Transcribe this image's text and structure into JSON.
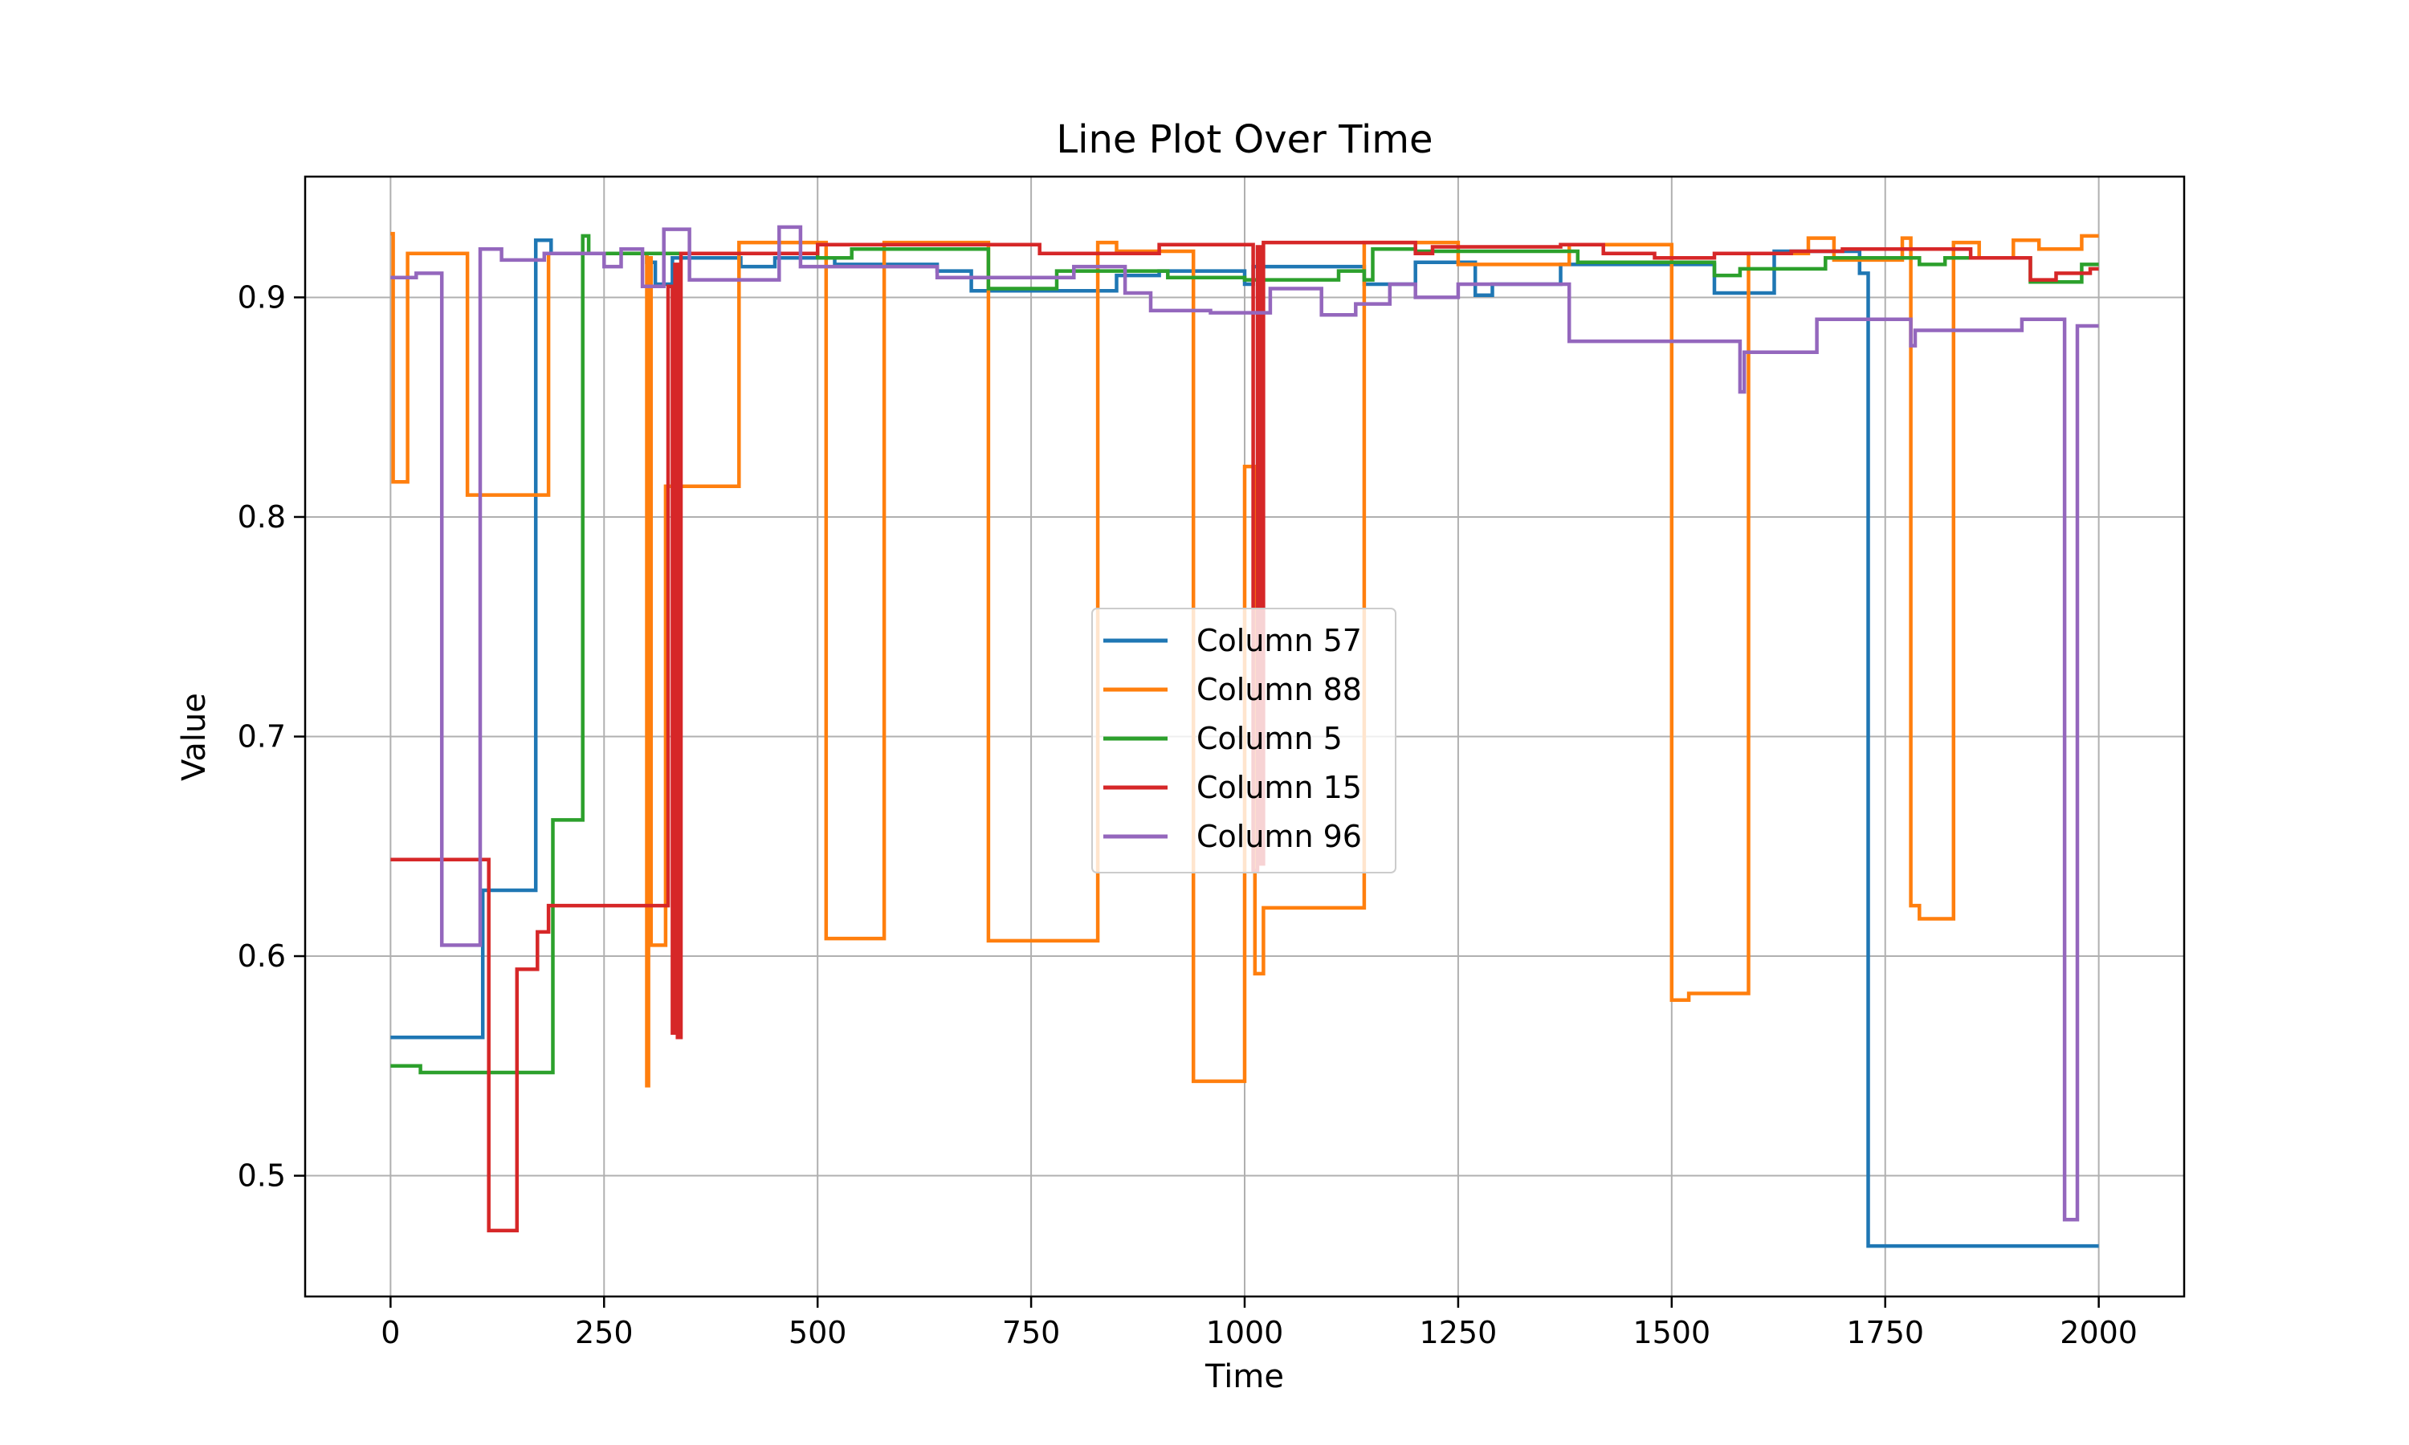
{
  "chart_data": {
    "type": "line",
    "title": "Line Plot Over Time",
    "xlabel": "Time",
    "ylabel": "Value",
    "xlim": [
      -100,
      2100
    ],
    "ylim": [
      0.445,
      0.955
    ],
    "xticks": [
      0,
      250,
      500,
      750,
      1000,
      1250,
      1500,
      1750,
      2000
    ],
    "yticks": [
      0.5,
      0.6,
      0.7,
      0.8,
      0.9
    ],
    "grid": true,
    "legend_position": "center",
    "series": [
      {
        "name": "Column 57",
        "color": "#1f77b4",
        "points": [
          [
            0,
            0.563
          ],
          [
            108,
            0.563
          ],
          [
            108,
            0.63
          ],
          [
            170,
            0.63
          ],
          [
            170,
            0.926
          ],
          [
            188,
            0.926
          ],
          [
            188,
            0.92
          ],
          [
            300,
            0.92
          ],
          [
            300,
            0.916
          ],
          [
            310,
            0.916
          ],
          [
            310,
            0.906
          ],
          [
            330,
            0.906
          ],
          [
            330,
            0.918
          ],
          [
            410,
            0.918
          ],
          [
            410,
            0.914
          ],
          [
            450,
            0.914
          ],
          [
            450,
            0.918
          ],
          [
            520,
            0.918
          ],
          [
            520,
            0.915
          ],
          [
            640,
            0.915
          ],
          [
            640,
            0.912
          ],
          [
            680,
            0.912
          ],
          [
            680,
            0.903
          ],
          [
            850,
            0.903
          ],
          [
            850,
            0.91
          ],
          [
            900,
            0.91
          ],
          [
            900,
            0.912
          ],
          [
            1000,
            0.912
          ],
          [
            1000,
            0.906
          ],
          [
            1010,
            0.906
          ],
          [
            1010,
            0.914
          ],
          [
            1140,
            0.914
          ],
          [
            1140,
            0.906
          ],
          [
            1200,
            0.906
          ],
          [
            1200,
            0.916
          ],
          [
            1270,
            0.916
          ],
          [
            1270,
            0.901
          ],
          [
            1290,
            0.901
          ],
          [
            1290,
            0.906
          ],
          [
            1370,
            0.906
          ],
          [
            1370,
            0.915
          ],
          [
            1550,
            0.915
          ],
          [
            1550,
            0.902
          ],
          [
            1620,
            0.902
          ],
          [
            1620,
            0.921
          ],
          [
            1720,
            0.921
          ],
          [
            1720,
            0.911
          ],
          [
            1730,
            0.911
          ],
          [
            1730,
            0.468
          ],
          [
            2000,
            0.468
          ]
        ]
      },
      {
        "name": "Column 88",
        "color": "#ff7f0e",
        "points": [
          [
            0,
            0.929
          ],
          [
            3,
            0.929
          ],
          [
            3,
            0.816
          ],
          [
            20,
            0.816
          ],
          [
            20,
            0.92
          ],
          [
            90,
            0.92
          ],
          [
            90,
            0.81
          ],
          [
            185,
            0.81
          ],
          [
            185,
            0.92
          ],
          [
            300,
            0.92
          ],
          [
            300,
            0.541
          ],
          [
            302,
            0.541
          ],
          [
            302,
            0.918
          ],
          [
            305,
            0.918
          ],
          [
            305,
            0.605
          ],
          [
            322,
            0.605
          ],
          [
            322,
            0.814
          ],
          [
            408,
            0.814
          ],
          [
            408,
            0.925
          ],
          [
            510,
            0.925
          ],
          [
            510,
            0.608
          ],
          [
            578,
            0.608
          ],
          [
            578,
            0.925
          ],
          [
            700,
            0.925
          ],
          [
            700,
            0.607
          ],
          [
            828,
            0.607
          ],
          [
            828,
            0.925
          ],
          [
            850,
            0.925
          ],
          [
            850,
            0.921
          ],
          [
            940,
            0.921
          ],
          [
            940,
            0.543
          ],
          [
            1000,
            0.543
          ],
          [
            1000,
            0.823
          ],
          [
            1012,
            0.823
          ],
          [
            1012,
            0.592
          ],
          [
            1022,
            0.592
          ],
          [
            1022,
            0.622
          ],
          [
            1140,
            0.622
          ],
          [
            1140,
            0.925
          ],
          [
            1250,
            0.925
          ],
          [
            1250,
            0.915
          ],
          [
            1380,
            0.915
          ],
          [
            1380,
            0.924
          ],
          [
            1500,
            0.924
          ],
          [
            1500,
            0.58
          ],
          [
            1520,
            0.58
          ],
          [
            1520,
            0.583
          ],
          [
            1590,
            0.583
          ],
          [
            1590,
            0.92
          ],
          [
            1660,
            0.92
          ],
          [
            1660,
            0.927
          ],
          [
            1690,
            0.927
          ],
          [
            1690,
            0.917
          ],
          [
            1770,
            0.917
          ],
          [
            1770,
            0.927
          ],
          [
            1780,
            0.927
          ],
          [
            1780,
            0.623
          ],
          [
            1790,
            0.623
          ],
          [
            1790,
            0.617
          ],
          [
            1830,
            0.617
          ],
          [
            1830,
            0.925
          ],
          [
            1860,
            0.925
          ],
          [
            1860,
            0.918
          ],
          [
            1900,
            0.918
          ],
          [
            1900,
            0.926
          ],
          [
            1930,
            0.926
          ],
          [
            1930,
            0.922
          ],
          [
            1980,
            0.922
          ],
          [
            1980,
            0.928
          ],
          [
            2000,
            0.928
          ]
        ]
      },
      {
        "name": "Column 5",
        "color": "#2ca02c",
        "points": [
          [
            0,
            0.55
          ],
          [
            35,
            0.55
          ],
          [
            35,
            0.547
          ],
          [
            190,
            0.547
          ],
          [
            190,
            0.662
          ],
          [
            225,
            0.662
          ],
          [
            225,
            0.928
          ],
          [
            232,
            0.928
          ],
          [
            232,
            0.92
          ],
          [
            500,
            0.92
          ],
          [
            500,
            0.918
          ],
          [
            540,
            0.918
          ],
          [
            540,
            0.922
          ],
          [
            700,
            0.922
          ],
          [
            700,
            0.904
          ],
          [
            780,
            0.904
          ],
          [
            780,
            0.912
          ],
          [
            910,
            0.912
          ],
          [
            910,
            0.909
          ],
          [
            1000,
            0.909
          ],
          [
            1000,
            0.908
          ],
          [
            1110,
            0.908
          ],
          [
            1110,
            0.912
          ],
          [
            1140,
            0.912
          ],
          [
            1140,
            0.908
          ],
          [
            1150,
            0.908
          ],
          [
            1150,
            0.922
          ],
          [
            1200,
            0.922
          ],
          [
            1200,
            0.921
          ],
          [
            1390,
            0.921
          ],
          [
            1390,
            0.916
          ],
          [
            1550,
            0.916
          ],
          [
            1550,
            0.91
          ],
          [
            1580,
            0.91
          ],
          [
            1580,
            0.913
          ],
          [
            1680,
            0.913
          ],
          [
            1680,
            0.918
          ],
          [
            1790,
            0.918
          ],
          [
            1790,
            0.915
          ],
          [
            1820,
            0.915
          ],
          [
            1820,
            0.918
          ],
          [
            1920,
            0.918
          ],
          [
            1920,
            0.907
          ],
          [
            1980,
            0.907
          ],
          [
            1980,
            0.915
          ],
          [
            2000,
            0.915
          ]
        ]
      },
      {
        "name": "Column 15",
        "color": "#d62728",
        "points": [
          [
            0,
            0.644
          ],
          [
            115,
            0.644
          ],
          [
            115,
            0.475
          ],
          [
            148,
            0.475
          ],
          [
            148,
            0.594
          ],
          [
            172,
            0.594
          ],
          [
            172,
            0.611
          ],
          [
            185,
            0.611
          ],
          [
            185,
            0.623
          ],
          [
            325,
            0.623
          ],
          [
            325,
            0.905
          ],
          [
            330,
            0.905
          ],
          [
            330,
            0.565
          ],
          [
            333,
            0.565
          ],
          [
            333,
            0.915
          ],
          [
            336,
            0.915
          ],
          [
            336,
            0.563
          ],
          [
            340,
            0.563
          ],
          [
            340,
            0.92
          ],
          [
            500,
            0.92
          ],
          [
            500,
            0.924
          ],
          [
            760,
            0.924
          ],
          [
            760,
            0.92
          ],
          [
            900,
            0.92
          ],
          [
            900,
            0.924
          ],
          [
            1010,
            0.924
          ],
          [
            1010,
            0.639
          ],
          [
            1015,
            0.639
          ],
          [
            1015,
            0.923
          ],
          [
            1018,
            0.923
          ],
          [
            1018,
            0.642
          ],
          [
            1022,
            0.642
          ],
          [
            1022,
            0.925
          ],
          [
            1200,
            0.925
          ],
          [
            1200,
            0.92
          ],
          [
            1220,
            0.92
          ],
          [
            1220,
            0.923
          ],
          [
            1370,
            0.923
          ],
          [
            1370,
            0.924
          ],
          [
            1420,
            0.924
          ],
          [
            1420,
            0.92
          ],
          [
            1480,
            0.92
          ],
          [
            1480,
            0.918
          ],
          [
            1550,
            0.918
          ],
          [
            1550,
            0.92
          ],
          [
            1640,
            0.92
          ],
          [
            1640,
            0.921
          ],
          [
            1700,
            0.921
          ],
          [
            1700,
            0.922
          ],
          [
            1850,
            0.922
          ],
          [
            1850,
            0.918
          ],
          [
            1920,
            0.918
          ],
          [
            1920,
            0.908
          ],
          [
            1950,
            0.908
          ],
          [
            1950,
            0.911
          ],
          [
            1990,
            0.911
          ],
          [
            1990,
            0.913
          ],
          [
            2000,
            0.913
          ]
        ]
      },
      {
        "name": "Column 96",
        "color": "#9467bd",
        "points": [
          [
            0,
            0.909
          ],
          [
            30,
            0.909
          ],
          [
            30,
            0.911
          ],
          [
            60,
            0.911
          ],
          [
            60,
            0.605
          ],
          [
            105,
            0.605
          ],
          [
            105,
            0.922
          ],
          [
            130,
            0.922
          ],
          [
            130,
            0.917
          ],
          [
            180,
            0.917
          ],
          [
            180,
            0.92
          ],
          [
            250,
            0.92
          ],
          [
            250,
            0.914
          ],
          [
            270,
            0.914
          ],
          [
            270,
            0.922
          ],
          [
            295,
            0.922
          ],
          [
            295,
            0.905
          ],
          [
            320,
            0.905
          ],
          [
            320,
            0.931
          ],
          [
            350,
            0.931
          ],
          [
            350,
            0.908
          ],
          [
            455,
            0.908
          ],
          [
            455,
            0.932
          ],
          [
            480,
            0.932
          ],
          [
            480,
            0.914
          ],
          [
            640,
            0.914
          ],
          [
            640,
            0.909
          ],
          [
            800,
            0.909
          ],
          [
            800,
            0.914
          ],
          [
            860,
            0.914
          ],
          [
            860,
            0.902
          ],
          [
            890,
            0.902
          ],
          [
            890,
            0.894
          ],
          [
            960,
            0.894
          ],
          [
            960,
            0.893
          ],
          [
            1030,
            0.893
          ],
          [
            1030,
            0.904
          ],
          [
            1090,
            0.904
          ],
          [
            1090,
            0.892
          ],
          [
            1130,
            0.892
          ],
          [
            1130,
            0.897
          ],
          [
            1170,
            0.897
          ],
          [
            1170,
            0.906
          ],
          [
            1200,
            0.906
          ],
          [
            1200,
            0.9
          ],
          [
            1250,
            0.9
          ],
          [
            1250,
            0.906
          ],
          [
            1380,
            0.906
          ],
          [
            1380,
            0.88
          ],
          [
            1580,
            0.88
          ],
          [
            1580,
            0.857
          ],
          [
            1585,
            0.857
          ],
          [
            1585,
            0.875
          ],
          [
            1670,
            0.875
          ],
          [
            1670,
            0.89
          ],
          [
            1780,
            0.89
          ],
          [
            1780,
            0.878
          ],
          [
            1785,
            0.878
          ],
          [
            1785,
            0.885
          ],
          [
            1910,
            0.885
          ],
          [
            1910,
            0.89
          ],
          [
            1960,
            0.89
          ],
          [
            1960,
            0.48
          ],
          [
            1975,
            0.48
          ],
          [
            1975,
            0.887
          ],
          [
            2000,
            0.887
          ]
        ]
      }
    ]
  }
}
